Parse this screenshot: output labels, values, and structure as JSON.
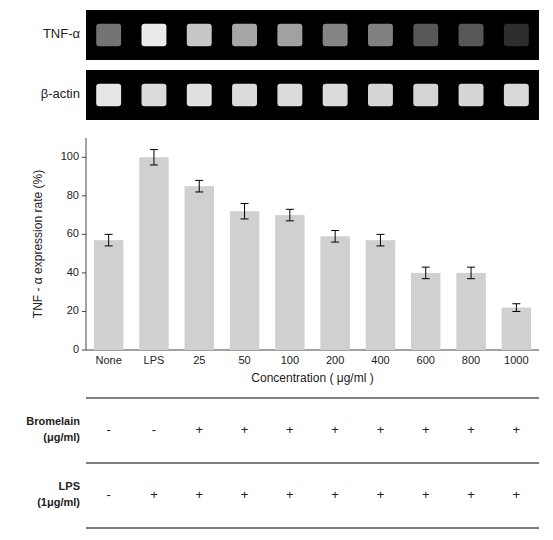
{
  "chart_data": [
    {
      "type": "gel",
      "title": "TNF-α",
      "color": "#ffffff",
      "values": [
        0.45,
        0.92,
        0.78,
        0.65,
        0.63,
        0.52,
        0.5,
        0.34,
        0.34,
        0.18
      ]
    },
    {
      "type": "gel",
      "title": "β-actin",
      "color": "#ffffff",
      "values": [
        0.9,
        0.86,
        0.88,
        0.86,
        0.86,
        0.86,
        0.84,
        0.83,
        0.84,
        0.85
      ]
    },
    {
      "type": "bar",
      "categories": [
        "None",
        "LPS",
        "25",
        "50",
        "100",
        "200",
        "400",
        "600",
        "800",
        "1000"
      ],
      "values": [
        57,
        100,
        85,
        72,
        70,
        59,
        57,
        40,
        40,
        22
      ],
      "errors": [
        3,
        4,
        3,
        4,
        3,
        3,
        3,
        3,
        3,
        2
      ],
      "color": "#d0d0d0",
      "xlabel": "Concentration ( μg/ml )",
      "ylabel": "TNF - α expression rate (%)",
      "ylim": [
        0,
        110
      ],
      "yticks": [
        0,
        20,
        40,
        60,
        80,
        100
      ],
      "rows": [
        {
          "label": [
            "Bromelain",
            "(μg/ml)"
          ],
          "values": [
            "-",
            "-",
            "+",
            "+",
            "+",
            "+",
            "+",
            "+",
            "+",
            "+"
          ]
        },
        {
          "label": [
            "LPS",
            "(1μg/ml)"
          ],
          "values": [
            "-",
            "+",
            "+",
            "+",
            "+",
            "+",
            "+",
            "+",
            "+",
            "+"
          ]
        }
      ]
    }
  ]
}
